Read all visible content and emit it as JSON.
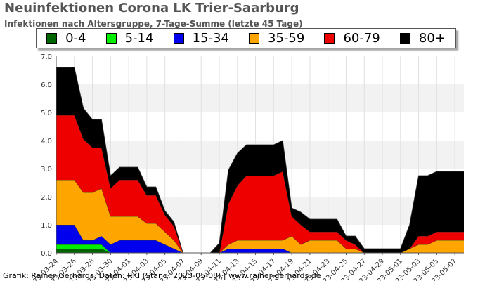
{
  "title": "Neuinfektionen Corona LK Trier-Saarburg",
  "subtitle": "Infektionen nach Altersgruppe, 7-Tage-Summe (letzte 45 Tage)",
  "credit": "Grafik: Rainer Gerhards, Daten: RKI (Stand: 2023-05-08) | www.rainer-gerhards.de",
  "chart_data": {
    "type": "area",
    "stacked": true,
    "title": "Neuinfektionen Corona LK Trier-Saarburg",
    "subtitle": "Infektionen nach Altersgruppe, 7-Tage-Summe (letzte 45 Tage)",
    "ylim": [
      0,
      7
    ],
    "yticks": [
      "0.0",
      "1.0",
      "2.0",
      "3.0",
      "4.0",
      "5.0",
      "6.0",
      "7.0"
    ],
    "grid": "horizontal bands",
    "legend_position": "top",
    "x": [
      "2023-03-24",
      "2023-03-25",
      "2023-03-26",
      "2023-03-27",
      "2023-03-28",
      "2023-03-29",
      "2023-03-30",
      "2023-03-31",
      "2023-04-01",
      "2023-04-02",
      "2023-04-03",
      "2023-04-04",
      "2023-04-05",
      "2023-04-06",
      "2023-04-07",
      "2023-04-08",
      "2023-04-09",
      "2023-04-10",
      "2023-04-11",
      "2023-04-12",
      "2023-04-13",
      "2023-04-14",
      "2023-04-15",
      "2023-04-16",
      "2023-04-17",
      "2023-04-18",
      "2023-04-19",
      "2023-04-20",
      "2023-04-21",
      "2023-04-22",
      "2023-04-23",
      "2023-04-24",
      "2023-04-25",
      "2023-04-26",
      "2023-04-27",
      "2023-04-28",
      "2023-04-29",
      "2023-04-30",
      "2023-05-01",
      "2023-05-02",
      "2023-05-03",
      "2023-05-04",
      "2023-05-05",
      "2023-05-06",
      "2023-05-07",
      "2023-05-08"
    ],
    "xtick_labels": [
      "2023-03-24",
      "2023-03-26",
      "2023-03-28",
      "2023-03-30",
      "2023-04-01",
      "2023-04-03",
      "2023-04-05",
      "2023-04-07",
      "2023-04-09",
      "2023-04-11",
      "2023-04-13",
      "2023-04-15",
      "2023-04-17",
      "2023-04-19",
      "2023-04-21",
      "2023-04-23",
      "2023-04-25",
      "2023-04-27",
      "2023-04-29",
      "2023-05-01",
      "2023-05-03",
      "2023-05-05",
      "2023-05-07"
    ],
    "series": [
      {
        "name": "0-4",
        "color": "#006400",
        "values": [
          0.15,
          0.15,
          0.15,
          0.15,
          0.15,
          0.15,
          0,
          0,
          0,
          0,
          0,
          0,
          0,
          0,
          0,
          0,
          0,
          0,
          0,
          0,
          0,
          0,
          0,
          0,
          0,
          0,
          0,
          0,
          0,
          0,
          0,
          0,
          0,
          0,
          0,
          0,
          0,
          0,
          0,
          0,
          0,
          0,
          0,
          0,
          0,
          0
        ]
      },
      {
        "name": "5-14",
        "color": "#00ee00",
        "values": [
          0.15,
          0.15,
          0.15,
          0.15,
          0.15,
          0.15,
          0,
          0,
          0,
          0,
          0,
          0,
          0,
          0,
          0,
          0,
          0,
          0,
          0,
          0,
          0,
          0,
          0,
          0,
          0,
          0,
          0,
          0,
          0,
          0,
          0,
          0,
          0,
          0,
          0,
          0,
          0,
          0,
          0,
          0,
          0,
          0,
          0,
          0,
          0,
          0
        ]
      },
      {
        "name": "15-34",
        "color": "#0000ee",
        "values": [
          0.7,
          0.7,
          0.7,
          0.15,
          0.15,
          0.3,
          0.3,
          0.45,
          0.45,
          0.45,
          0.45,
          0.45,
          0.3,
          0.15,
          0,
          0,
          0,
          0,
          0,
          0.15,
          0.15,
          0.15,
          0.15,
          0.15,
          0.15,
          0.15,
          0,
          0,
          0,
          0,
          0,
          0,
          0,
          0,
          0,
          0,
          0,
          0,
          0,
          0,
          0,
          0,
          0,
          0,
          0,
          0
        ]
      },
      {
        "name": "35-59",
        "color": "#ffa500",
        "values": [
          1.6,
          1.6,
          1.6,
          1.7,
          1.7,
          1.7,
          1.0,
          0.85,
          0.85,
          0.85,
          0.6,
          0.6,
          0.45,
          0.3,
          0,
          0,
          0,
          0,
          0,
          0.15,
          0.3,
          0.3,
          0.3,
          0.3,
          0.3,
          0.3,
          0.6,
          0.3,
          0.45,
          0.45,
          0.45,
          0.45,
          0.15,
          0.15,
          0,
          0,
          0,
          0,
          0,
          0.15,
          0.3,
          0.3,
          0.45,
          0.45,
          0.45,
          0.45
        ]
      },
      {
        "name": "60-79",
        "color": "#ee0000",
        "values": [
          2.3,
          2.3,
          2.3,
          1.9,
          1.6,
          1.45,
          1.0,
          1.3,
          1.3,
          1.3,
          1.0,
          1.0,
          0.6,
          0.5,
          0,
          0,
          0,
          0,
          0,
          1.45,
          1.95,
          2.3,
          2.3,
          2.3,
          2.3,
          2.45,
          0.7,
          0.7,
          0.3,
          0.3,
          0.3,
          0.3,
          0.3,
          0.15,
          0,
          0,
          0,
          0,
          0,
          0,
          0.3,
          0.3,
          0.3,
          0.3,
          0.3,
          0.3
        ]
      },
      {
        "name": "80+",
        "color": "#000000",
        "values": [
          1.7,
          1.7,
          1.7,
          1.1,
          1.0,
          1.0,
          0.45,
          0.45,
          0.45,
          0.45,
          0.3,
          0.3,
          0.15,
          0.15,
          0,
          0,
          0,
          0,
          0.35,
          1.2,
          1.15,
          1.1,
          1.1,
          1.1,
          1.1,
          1.1,
          0.3,
          0.45,
          0.45,
          0.45,
          0.45,
          0.45,
          0.15,
          0.3,
          0.15,
          0.15,
          0.15,
          0.15,
          0.15,
          0.85,
          2.15,
          2.15,
          2.15,
          2.15,
          2.15,
          2.15
        ]
      }
    ]
  }
}
